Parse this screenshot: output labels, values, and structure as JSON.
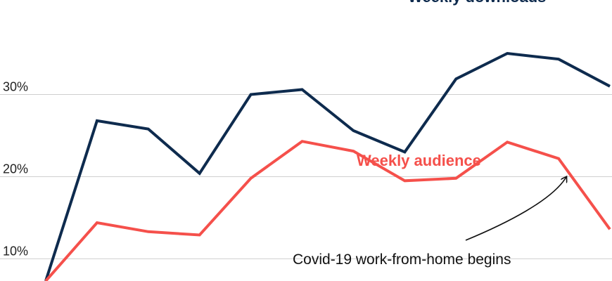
{
  "chart_data": {
    "type": "line",
    "x": [
      0,
      1,
      2,
      3,
      4,
      5,
      6,
      7,
      8,
      9,
      10,
      11
    ],
    "ylim": [
      7.3,
      41.5
    ],
    "yticks": [
      {
        "value": 10,
        "label": "10%"
      },
      {
        "value": 20,
        "label": "20%"
      },
      {
        "value": 30,
        "label": "30%"
      }
    ],
    "grid": true,
    "series": [
      {
        "name": "Weekly downloads",
        "color": "#0e2b4e",
        "values": [
          7.3,
          26.8,
          25.8,
          20.4,
          30.0,
          30.6,
          25.6,
          23.0,
          31.9,
          35.0,
          34.3,
          31.0
        ]
      },
      {
        "name": "Weekly audience",
        "color": "#f5504b",
        "values": [
          7.3,
          14.4,
          13.3,
          12.9,
          19.8,
          24.3,
          23.1,
          19.5,
          19.8,
          24.2,
          22.2,
          13.6
        ]
      }
    ],
    "annotations": [
      {
        "text": "Covid-19 work-from-home begins"
      }
    ]
  }
}
